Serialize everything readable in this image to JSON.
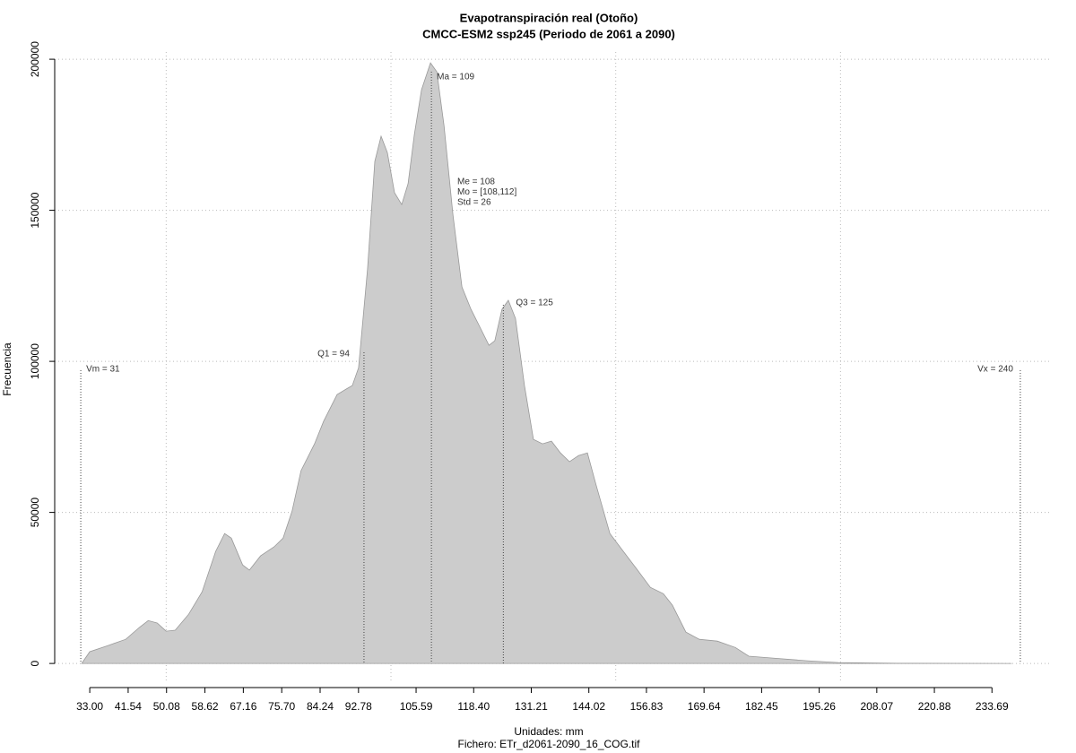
{
  "chart_data": {
    "type": "area",
    "title": "Evapotranspiración real (Otoño)",
    "subtitle": "CMCC-ESM2 ssp245 (Periodo de 2061 a 2090)",
    "x_label": "Unidades: mm",
    "caption": "Fichero: ETr_d2061-2090_16_COG.tif",
    "y_label": "Frecuencia",
    "color": "#cccccc",
    "x": [
      31.2,
      33,
      37,
      41,
      44,
      46,
      48,
      50,
      52,
      55,
      58,
      61,
      63,
      64.5,
      67,
      68.5,
      71,
      74,
      76,
      78,
      80,
      83,
      85,
      88,
      90,
      91.4,
      92.8,
      94.8,
      96.4,
      97.8,
      99.2,
      100.8,
      102.4,
      103.8,
      105.2,
      106.8,
      108.8,
      110.2,
      111.8,
      113.8,
      115.8,
      117.8,
      119.8,
      121.8,
      123.1,
      124.7,
      126.1,
      127.7,
      129.7,
      131.7,
      133.7,
      135.7,
      137.7,
      139.7,
      141.7,
      143.7,
      145.6,
      148.7,
      151.7,
      154.7,
      157.7,
      160.6,
      162.6,
      165.6,
      168.6,
      172.6,
      176.6,
      179.6,
      184.6,
      192.6,
      199.5,
      212.5,
      238
    ],
    "values": [
      0,
      3900,
      5900,
      8000,
      11900,
      14200,
      13400,
      10700,
      11000,
      16300,
      23700,
      37100,
      43000,
      41500,
      32600,
      30900,
      35600,
      38600,
      41500,
      50400,
      63800,
      72700,
      80100,
      89000,
      90800,
      92000,
      97900,
      130600,
      166200,
      174500,
      169100,
      155800,
      151900,
      158800,
      175100,
      189900,
      198800,
      195800,
      178000,
      148400,
      124600,
      117200,
      111300,
      105300,
      106800,
      117200,
      120200,
      114200,
      92000,
      74200,
      72700,
      73600,
      69700,
      66800,
      68800,
      69700,
      59300,
      43000,
      37100,
      31200,
      25200,
      23100,
      19300,
      10400,
      8000,
      7400,
      5300,
      2400,
      1800,
      900,
      300,
      50,
      0
    ],
    "xlim": [
      25.2,
      246.4
    ],
    "ylim": [
      -5900,
      202400
    ],
    "xticks": [
      {
        "value": 33,
        "label": "33.00"
      },
      {
        "value": 41.54,
        "label": "41.54"
      },
      {
        "value": 50.08,
        "label": "50.08"
      },
      {
        "value": 58.62,
        "label": "58.62"
      },
      {
        "value": 67.16,
        "label": "67.16"
      },
      {
        "value": 75.7,
        "label": "75.70"
      },
      {
        "value": 84.24,
        "label": "84.24"
      },
      {
        "value": 92.78,
        "label": "92.78"
      },
      {
        "value": 105.59,
        "label": "105.59"
      },
      {
        "value": 118.4,
        "label": "118.40"
      },
      {
        "value": 131.21,
        "label": "131.21"
      },
      {
        "value": 144.02,
        "label": "144.02"
      },
      {
        "value": 156.83,
        "label": "156.83"
      },
      {
        "value": 169.64,
        "label": "169.64"
      },
      {
        "value": 182.45,
        "label": "182.45"
      },
      {
        "value": 195.26,
        "label": "195.26"
      },
      {
        "value": 208.07,
        "label": "208.07"
      },
      {
        "value": 220.88,
        "label": "220.88"
      },
      {
        "value": 233.69,
        "label": "233.69"
      }
    ],
    "yticks": [
      0,
      50000,
      100000,
      150000,
      200000
    ],
    "xgrid": [
      50,
      100,
      150,
      200
    ],
    "grid": true,
    "markers": [
      {
        "label": "Vm = 31",
        "x": 31
      },
      {
        "label": "Q1 = 94",
        "x": 94
      },
      {
        "label": "Ma = 109",
        "x": 109
      },
      {
        "label": "Q3 = 125",
        "x": 125
      },
      {
        "label": "Vx = 240",
        "x": 240
      }
    ],
    "stats": [
      "Me = 108",
      "Mo = [108,112]",
      "Std = 26"
    ]
  }
}
